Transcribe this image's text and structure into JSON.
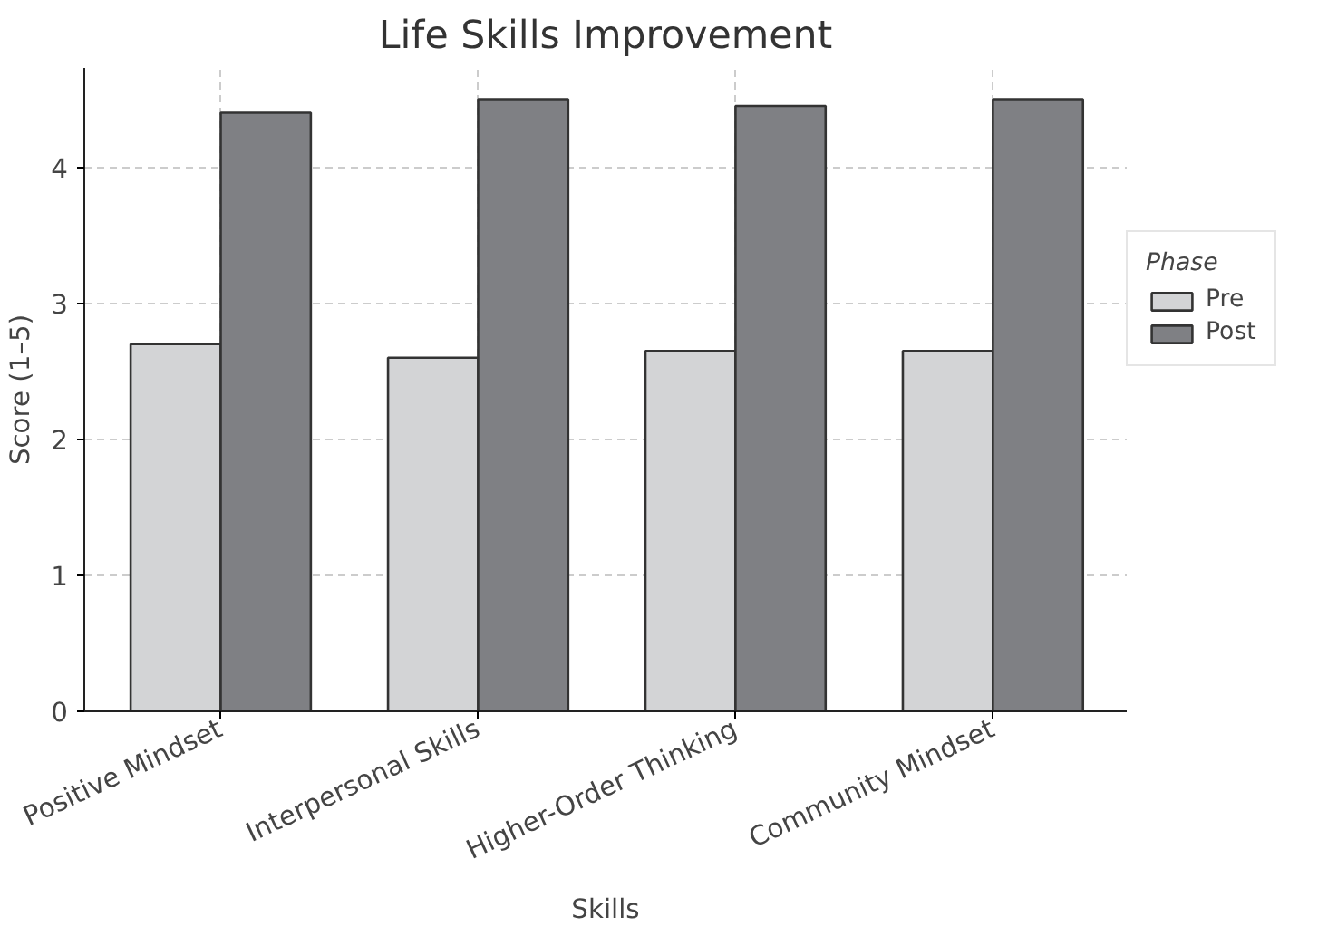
{
  "chart_data": {
    "type": "bar",
    "title": "Life Skills Improvement",
    "xlabel": "Skills",
    "ylabel": "Score (1–5)",
    "legend_title": "Phase",
    "categories": [
      "Positive Mindset",
      "Interpersonal Skills",
      "Higher-Order Thinking",
      "Community Mindset"
    ],
    "series": [
      {
        "name": "Pre",
        "color": "#d3d4d6",
        "values": [
          2.7,
          2.6,
          2.65,
          2.65
        ]
      },
      {
        "name": "Post",
        "color": "#7f8084",
        "values": [
          4.4,
          4.5,
          4.45,
          4.5
        ]
      }
    ],
    "ylim": [
      0,
      4.73
    ],
    "yticks": [
      0,
      1,
      2,
      3,
      4
    ],
    "grid": true,
    "legend": "right"
  }
}
